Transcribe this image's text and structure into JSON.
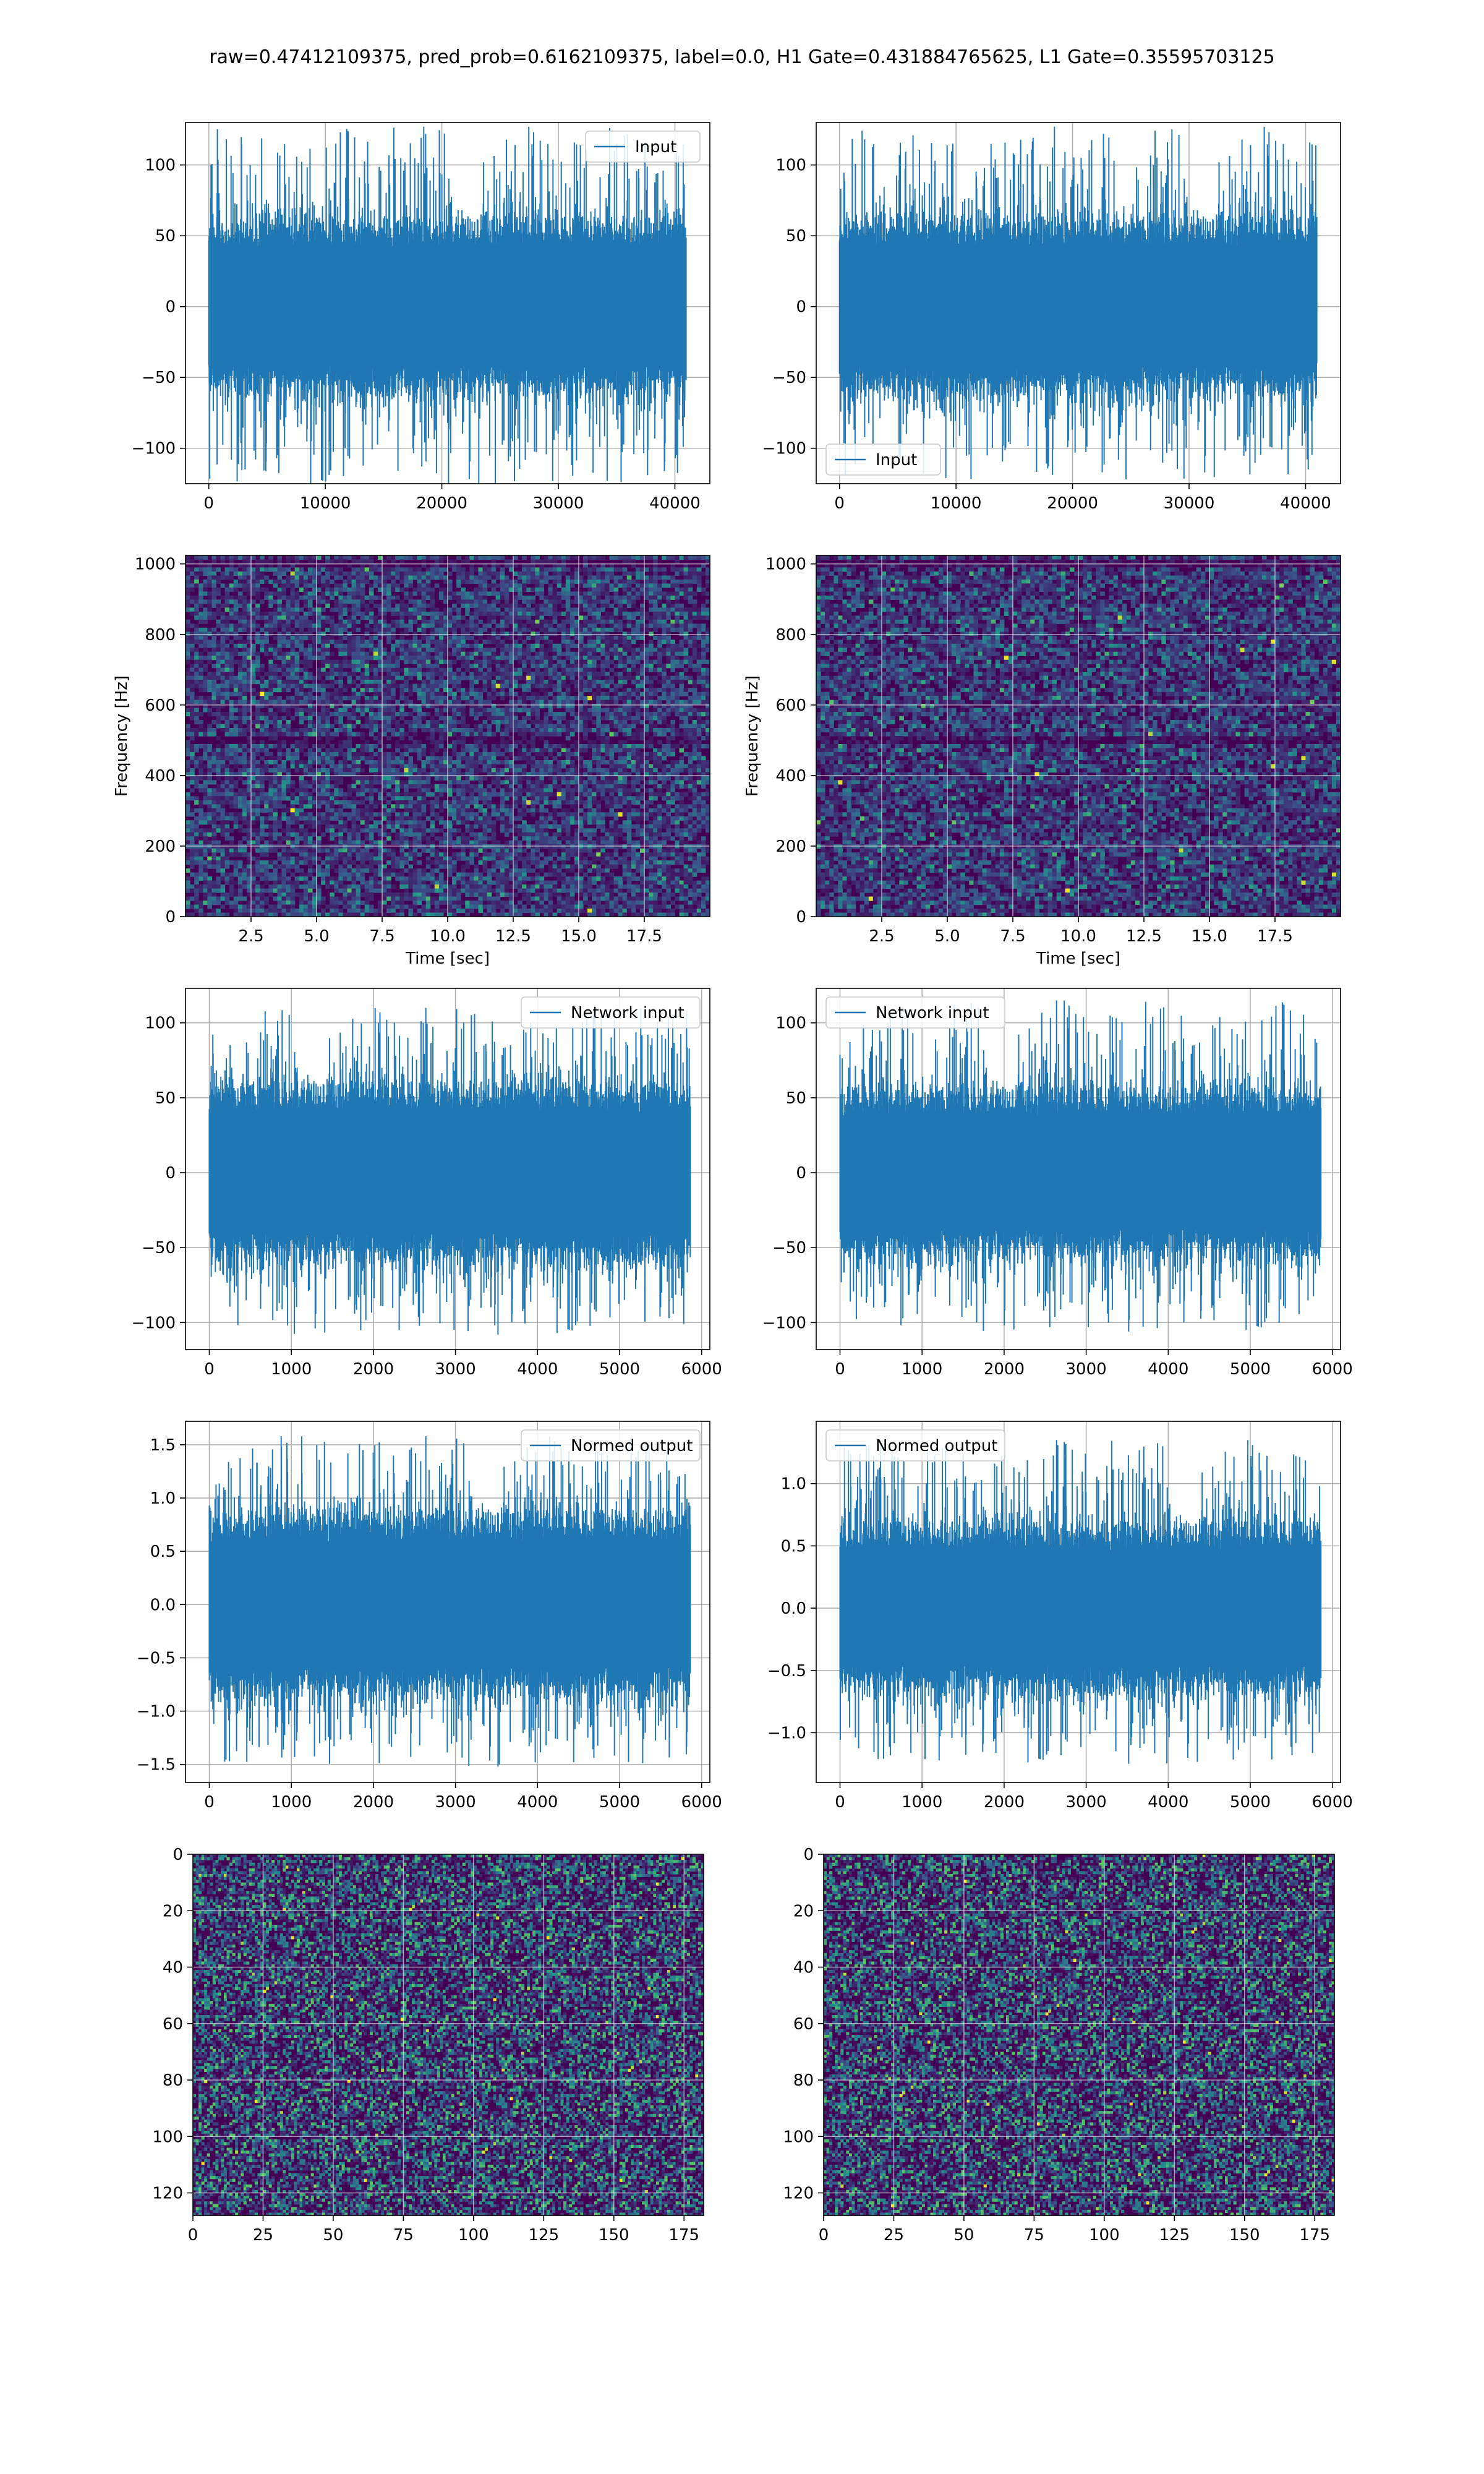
{
  "figure": {
    "suptitle": "raw=0.47412109375, pred_prob=0.6162109375, label=0.0, H1 Gate=0.431884765625, L1 Gate=0.35595703125"
  },
  "colors": {
    "line": "#1f77b4",
    "grid": "#b0b0b0",
    "axes_edge": "#000000",
    "viridis_low": "#440154",
    "viridis_mid": "#21918c",
    "viridis_high": "#fde725"
  },
  "chart_data": [
    {
      "id": "h1-input",
      "type": "line",
      "legend": "Input",
      "legend_loc": "upper right",
      "grid": true,
      "xlim": [
        -2000,
        43000
      ],
      "ylim": [
        -125,
        130
      ],
      "xticks": [
        0,
        10000,
        20000,
        30000,
        40000
      ],
      "yticks": [
        -100,
        -50,
        0,
        50,
        100
      ],
      "n_points": 40960,
      "x_range": [
        0,
        40960
      ],
      "envelope": {
        "core": 50,
        "peak_max": 127,
        "peak_min": -127
      },
      "xlabel": "",
      "ylabel": ""
    },
    {
      "id": "l1-input",
      "type": "line",
      "legend": "Input",
      "legend_loc": "lower left",
      "grid": true,
      "xlim": [
        -2000,
        43000
      ],
      "ylim": [
        -125,
        130
      ],
      "xticks": [
        0,
        10000,
        20000,
        30000,
        40000
      ],
      "yticks": [
        -100,
        -50,
        0,
        50,
        100
      ],
      "n_points": 40960,
      "x_range": [
        0,
        40960
      ],
      "envelope": {
        "core": 50,
        "peak_max": 127,
        "peak_min": -122
      },
      "xlabel": "",
      "ylabel": ""
    },
    {
      "id": "h1-spectrogram",
      "type": "heatmap",
      "colormap": "viridis",
      "grid": true,
      "xlabel": "Time [sec]",
      "ylabel": "Frequency [Hz]",
      "xlim": [
        0,
        20
      ],
      "ylim": [
        0,
        1024
      ],
      "xticks": [
        2.5,
        5.0,
        7.5,
        10.0,
        12.5,
        15.0,
        17.5
      ],
      "xtick_labels": [
        "2.5",
        "5.0",
        "7.5",
        "10.0",
        "12.5",
        "15.0",
        "17.5"
      ],
      "yticks": [
        0,
        200,
        400,
        600,
        800,
        1000
      ],
      "dark_bands_hz": [
        500,
        1000
      ]
    },
    {
      "id": "l1-spectrogram",
      "type": "heatmap",
      "colormap": "viridis",
      "grid": true,
      "xlabel": "Time [sec]",
      "ylabel": "Frequency [Hz]",
      "xlim": [
        0,
        20
      ],
      "ylim": [
        0,
        1024
      ],
      "xticks": [
        2.5,
        5.0,
        7.5,
        10.0,
        12.5,
        15.0,
        17.5
      ],
      "xtick_labels": [
        "2.5",
        "5.0",
        "7.5",
        "10.0",
        "12.5",
        "15.0",
        "17.5"
      ],
      "yticks": [
        0,
        200,
        400,
        600,
        800,
        1000
      ],
      "dark_bands_hz": [
        500,
        1000
      ]
    },
    {
      "id": "h1-network-input",
      "type": "line",
      "legend": "Network input",
      "legend_loc": "upper right",
      "grid": true,
      "xlim": [
        -290,
        6100
      ],
      "ylim": [
        -118,
        123
      ],
      "xticks": [
        0,
        1000,
        2000,
        3000,
        4000,
        5000,
        6000
      ],
      "yticks": [
        -100,
        -50,
        0,
        50,
        100
      ],
      "n_points": 5860,
      "x_range": [
        0,
        5860
      ],
      "envelope": {
        "core": 48,
        "peak_max": 110,
        "peak_min": -108
      },
      "xlabel": "",
      "ylabel": ""
    },
    {
      "id": "l1-network-input",
      "type": "line",
      "legend": "Network input",
      "legend_loc": "upper left",
      "grid": true,
      "xlim": [
        -290,
        6100
      ],
      "ylim": [
        -118,
        123
      ],
      "xticks": [
        0,
        1000,
        2000,
        3000,
        4000,
        5000,
        6000
      ],
      "yticks": [
        -100,
        -50,
        0,
        50,
        100
      ],
      "n_points": 5860,
      "x_range": [
        0,
        5860
      ],
      "envelope": {
        "core": 45,
        "peak_max": 115,
        "peak_min": -106
      },
      "xlabel": "",
      "ylabel": ""
    },
    {
      "id": "h1-normed-output",
      "type": "line",
      "legend": "Normed output",
      "legend_loc": "upper right",
      "grid": true,
      "xlim": [
        -290,
        6100
      ],
      "ylim": [
        -1.67,
        1.72
      ],
      "xticks": [
        0,
        1000,
        2000,
        3000,
        4000,
        5000,
        6000
      ],
      "yticks": [
        -1.5,
        -1.0,
        -0.5,
        0.0,
        0.5,
        1.0,
        1.5
      ],
      "ytick_labels": [
        "−1.5",
        "−1.0",
        "−0.5",
        "0.0",
        "0.5",
        "1.0",
        "1.5"
      ],
      "n_points": 5860,
      "x_range": [
        0,
        5860
      ],
      "envelope": {
        "core": 0.7,
        "peak_max": 1.58,
        "peak_min": -1.52
      },
      "xlabel": "",
      "ylabel": ""
    },
    {
      "id": "l1-normed-output",
      "type": "line",
      "legend": "Normed output",
      "legend_loc": "upper left",
      "grid": true,
      "xlim": [
        -290,
        6100
      ],
      "ylim": [
        -1.4,
        1.5
      ],
      "xticks": [
        0,
        1000,
        2000,
        3000,
        4000,
        5000,
        6000
      ],
      "yticks": [
        -1.0,
        -0.5,
        0.0,
        0.5,
        1.0
      ],
      "ytick_labels": [
        "−1.0",
        "−0.5",
        "0.0",
        "0.5",
        "1.0"
      ],
      "n_points": 5860,
      "x_range": [
        0,
        5860
      ],
      "envelope": {
        "core": 0.55,
        "peak_max": 1.35,
        "peak_min": -1.25
      },
      "xlabel": "",
      "ylabel": ""
    },
    {
      "id": "h1-output-image",
      "type": "heatmap",
      "colormap": "viridis",
      "grid": true,
      "xlim": [
        0,
        182
      ],
      "ylim": [
        128,
        0
      ],
      "shape": [
        128,
        182
      ],
      "xticks": [
        0,
        25,
        50,
        75,
        100,
        125,
        150,
        175
      ],
      "yticks": [
        0,
        20,
        40,
        60,
        80,
        100,
        120
      ],
      "xlabel": "",
      "ylabel": ""
    },
    {
      "id": "l1-output-image",
      "type": "heatmap",
      "colormap": "viridis",
      "grid": true,
      "xlim": [
        0,
        182
      ],
      "ylim": [
        128,
        0
      ],
      "shape": [
        128,
        182
      ],
      "xticks": [
        0,
        25,
        50,
        75,
        100,
        125,
        150,
        175
      ],
      "yticks": [
        0,
        20,
        40,
        60,
        80,
        100,
        120
      ],
      "xlabel": "",
      "ylabel": ""
    }
  ]
}
